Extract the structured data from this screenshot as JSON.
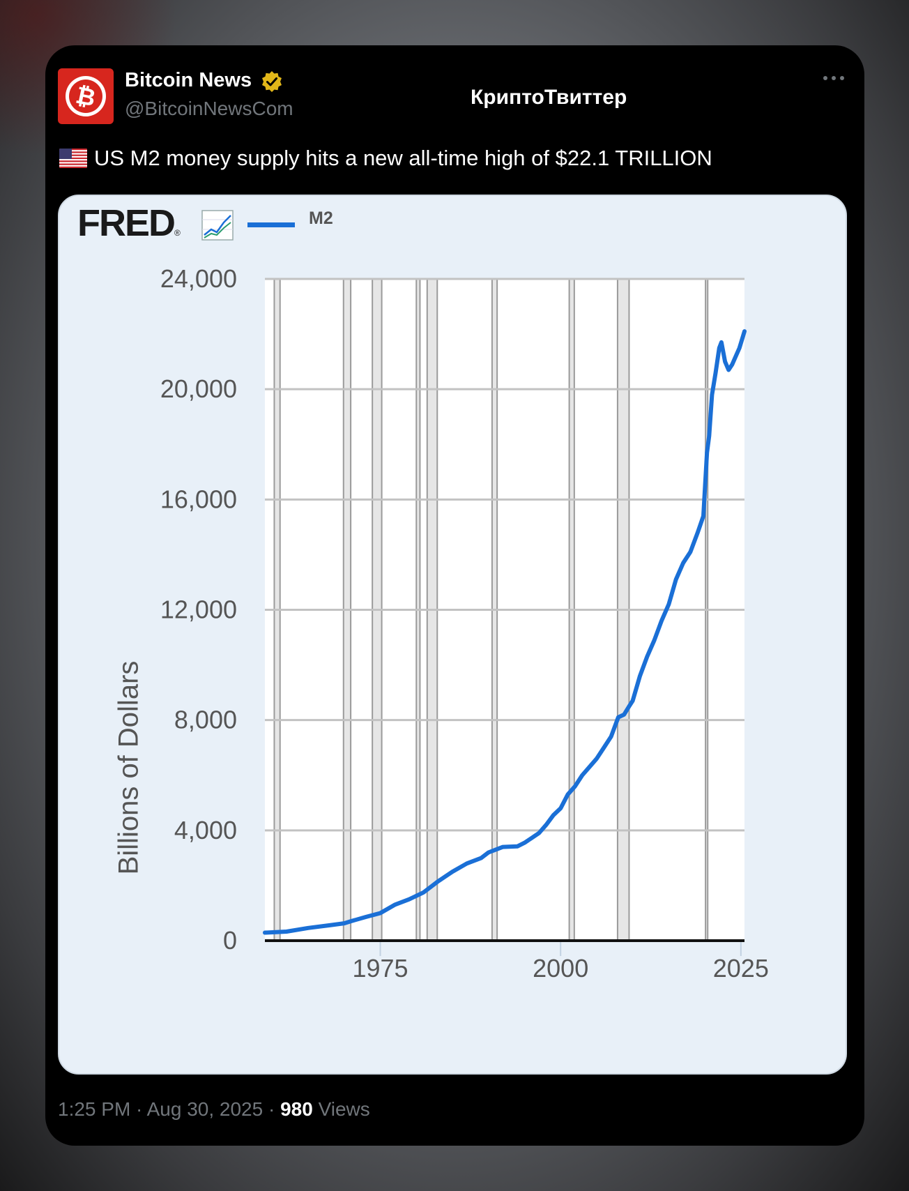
{
  "tweet": {
    "display_name": "Bitcoin News",
    "handle": "@BitcoinNewsCom",
    "channel_title": "КриптоТвиттер",
    "text": "US M2 money supply hits a new all-time high of $22.1 TRILLION",
    "timestamp": "1:25 PM · Aug 30, 2025 · ",
    "views_count": "980",
    "views_label": "Views",
    "icons": {
      "avatar": "bitcoin-logo-icon",
      "verified": "gold-verified-badge-icon",
      "more": "more-dots-icon",
      "flag": "us-flag-icon"
    }
  },
  "chart": {
    "logo_text": "FRED",
    "logo_mark": "®"
  },
  "chart_data": {
    "type": "line",
    "title": "",
    "legend": [
      "M2"
    ],
    "legend_placement": "top-left",
    "ylabel": "Billions of Dollars",
    "xlabel": "",
    "ylim": [
      0,
      24000
    ],
    "yticks": [
      "0",
      "4,000",
      "8,000",
      "12,000",
      "16,000",
      "20,000",
      "24,000"
    ],
    "ytick_values": [
      0,
      4000,
      8000,
      12000,
      16000,
      20000,
      24000
    ],
    "xlim": [
      1959,
      2025.5
    ],
    "xticks": [
      "1975",
      "2000",
      "2025"
    ],
    "xtick_values": [
      1975,
      2000,
      2025
    ],
    "grid": true,
    "line_color": "#1a6fd6",
    "recessions": [
      [
        1960.3,
        1961.1
      ],
      [
        1969.9,
        1970.9
      ],
      [
        1973.9,
        1975.2
      ],
      [
        1980.0,
        1980.5
      ],
      [
        1981.5,
        1982.9
      ],
      [
        1990.5,
        1991.2
      ],
      [
        2001.2,
        2001.9
      ],
      [
        2007.9,
        2009.5
      ],
      [
        2020.1,
        2020.4
      ]
    ],
    "series": [
      {
        "name": "M2",
        "x": [
          1959,
          1962,
          1965,
          1968,
          1970,
          1971,
          1973,
          1975,
          1977,
          1979,
          1981,
          1983,
          1985,
          1987,
          1989,
          1990,
          1992,
          1994,
          1995,
          1997,
          1998,
          1999,
          2000,
          2001,
          2002,
          2003,
          2004,
          2005,
          2006,
          2007,
          2008,
          2008.8,
          2009.5,
          2010,
          2011,
          2012,
          2013,
          2014,
          2015,
          2016,
          2017,
          2018,
          2019,
          2019.8,
          2020.3,
          2020.6,
          2021,
          2021.5,
          2022,
          2022.3,
          2022.8,
          2023.3,
          2023.8,
          2024.3,
          2024.8,
          2025.5
        ],
        "values": [
          290,
          330,
          460,
          560,
          630,
          710,
          860,
          1000,
          1300,
          1500,
          1750,
          2150,
          2500,
          2800,
          3000,
          3200,
          3400,
          3420,
          3550,
          3900,
          4200,
          4550,
          4800,
          5300,
          5600,
          6000,
          6300,
          6600,
          7000,
          7400,
          8100,
          8200,
          8500,
          8700,
          9600,
          10300,
          10900,
          11600,
          12200,
          13100,
          13700,
          14100,
          14800,
          15400,
          17700,
          18300,
          19800,
          20600,
          21500,
          21700,
          21000,
          20700,
          20900,
          21200,
          21500,
          22100
        ]
      }
    ]
  }
}
